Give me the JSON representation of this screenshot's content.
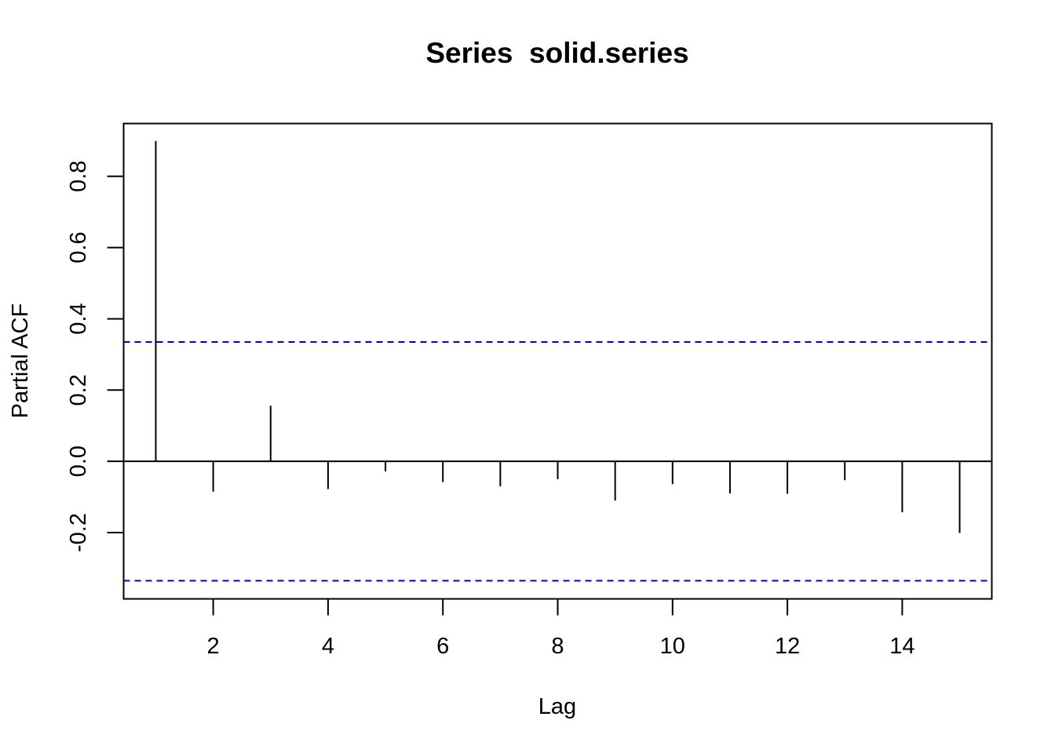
{
  "chart_data": {
    "type": "bar",
    "subtype": "partial-acf-spikes",
    "title": "Series  solid.series",
    "xlabel": "Lag",
    "ylabel": "Partial ACF",
    "x": [
      1,
      2,
      3,
      4,
      5,
      6,
      7,
      8,
      9,
      10,
      11,
      12,
      13,
      14,
      15
    ],
    "values": [
      0.899,
      -0.085,
      0.156,
      -0.078,
      -0.028,
      -0.058,
      -0.07,
      -0.05,
      -0.11,
      -0.064,
      -0.09,
      -0.091,
      -0.053,
      -0.143,
      -0.201
    ],
    "xlim": [
      0.44,
      15.56
    ],
    "ylim": [
      -0.386,
      0.948
    ],
    "xticks": [
      2,
      4,
      6,
      8,
      10,
      12,
      14
    ],
    "xtick_labels": [
      "2",
      "4",
      "6",
      "8",
      "10",
      "12",
      "14"
    ],
    "yticks": [
      -0.2,
      0.0,
      0.2,
      0.4,
      0.6,
      0.8
    ],
    "ytick_labels": [
      "-0.2",
      "0.0",
      "0.2",
      "0.4",
      "0.6",
      "0.8"
    ],
    "confidence_bound": 0.335,
    "confidence_line_color": "#0000cc",
    "zero_line": true,
    "grid": false,
    "legend": "none"
  }
}
